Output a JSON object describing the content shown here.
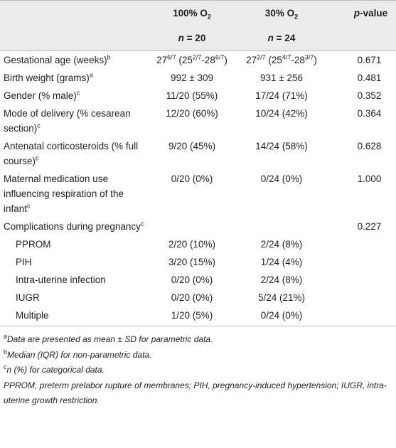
{
  "table": {
    "header": {
      "groups": [
        {
          "label": [
            "100% O",
            {
              "sub": "2"
            }
          ],
          "n": [
            {
              "em": "n"
            },
            " = 20"
          ]
        },
        {
          "label": [
            "30% O",
            {
              "sub": "2"
            }
          ],
          "n": [
            {
              "em": "n"
            },
            " = 24"
          ]
        }
      ],
      "p_label": [
        {
          "em": "p"
        },
        "-value"
      ]
    },
    "rows": [
      {
        "label": [
          "Gestational age (weeks)",
          {
            "sup": "b"
          }
        ],
        "group1": [
          "27",
          {
            "sup": "6/7"
          },
          " (25",
          {
            "sup": "2/7"
          },
          "-28",
          {
            "sup": "6/7"
          },
          ")"
        ],
        "group2": [
          "27",
          {
            "sup": "2/7"
          },
          " (25",
          {
            "sup": "4/7"
          },
          "-28",
          {
            "sup": "3/7"
          },
          ")"
        ],
        "p": "0.671"
      },
      {
        "label": [
          "Birth weight (grams)",
          {
            "sup": "a"
          }
        ],
        "group1": "992 ± 309",
        "group2": "931 ± 256",
        "p": "0.481"
      },
      {
        "label": [
          "Gender (% male)",
          {
            "sup": "c"
          }
        ],
        "group1": "11/20 (55%)",
        "group2": "17/24 (71%)",
        "p": "0.352"
      },
      {
        "label": [
          "Mode of delivery (% cesarean section)",
          {
            "sup": "c"
          }
        ],
        "group1": "12/20 (60%)",
        "group2": "10/24 (42%)",
        "p": "0.364"
      },
      {
        "label": [
          "Antenatal corticosteroids (% full course)",
          {
            "sup": "c"
          }
        ],
        "group1": "9/20 (45%)",
        "group2": "14/24 (58%)",
        "p": "0.628"
      },
      {
        "label": [
          "Maternal medication use influencing respiration of the infant",
          {
            "sup": "c"
          }
        ],
        "group1": "0/20 (0%)",
        "group2": "0/24 (0%)",
        "p": "1.000"
      },
      {
        "label": [
          "Complications during pregnancy",
          {
            "sup": "c"
          }
        ],
        "p": "0.227",
        "items": [
          {
            "label": "PPROM",
            "group1": "2/20 (10%)",
            "group2": "2/24 (8%)"
          },
          {
            "label": "PIH",
            "group1": "3/20 (15%)",
            "group2": "1/24 (4%)"
          },
          {
            "label": "Intra-uterine infection",
            "group1": "0/20 (0%)",
            "group2": "2/24 (8%)"
          },
          {
            "label": "IUGR",
            "group1": "0/20 (0%)",
            "group2": "5/24 (21%)"
          },
          {
            "label": "Multiple",
            "group1": "1/20 (5%)",
            "group2": "0/24 (0%)"
          }
        ]
      }
    ],
    "footnotes": [
      [
        {
          "sup": "a"
        },
        {
          "em": "Data are presented as mean ± SD for parametric data."
        }
      ],
      [
        {
          "sup": "b"
        },
        {
          "em": "Median (IQR) for non-parametric data."
        }
      ],
      [
        {
          "sup": "c"
        },
        {
          "em": "n (%) for categorical data."
        }
      ],
      [
        {
          "em": "PPROM, preterm prelabor rupture of membranes; PIH, pregnancy-induced hypertension; IUGR, intra-uterine growth restriction."
        }
      ]
    ]
  }
}
